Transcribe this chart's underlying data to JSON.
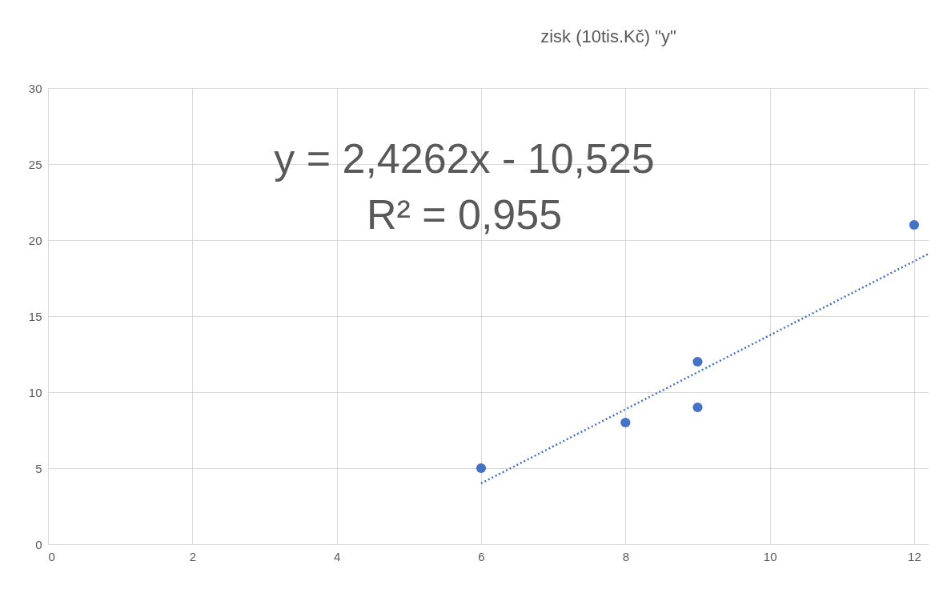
{
  "chart_data": {
    "type": "scatter",
    "title": "zisk (10tis.Kč) \"y\"",
    "series": [
      {
        "color": "#4472c4",
        "marker": "circle",
        "x": [
          6,
          8,
          9,
          9,
          12
        ],
        "values": [
          5,
          8,
          12,
          9,
          21
        ]
      },
      {
        "type": "line",
        "color": "#4472c4",
        "line_style": "dotted",
        "marker": "none",
        "x": [
          6,
          12.2
        ],
        "values": [
          4.0,
          19.1
        ]
      }
    ],
    "annotations": [
      "y = 2,4262x - 10,525",
      "R² = 0,955"
    ],
    "xlim": [
      0,
      12.2
    ],
    "xticks": [
      0,
      2,
      4,
      6,
      8,
      10,
      12
    ],
    "ylim": [
      0,
      30
    ],
    "yticks": [
      0,
      5,
      10,
      15,
      20,
      25,
      30
    ],
    "grid": true
  }
}
